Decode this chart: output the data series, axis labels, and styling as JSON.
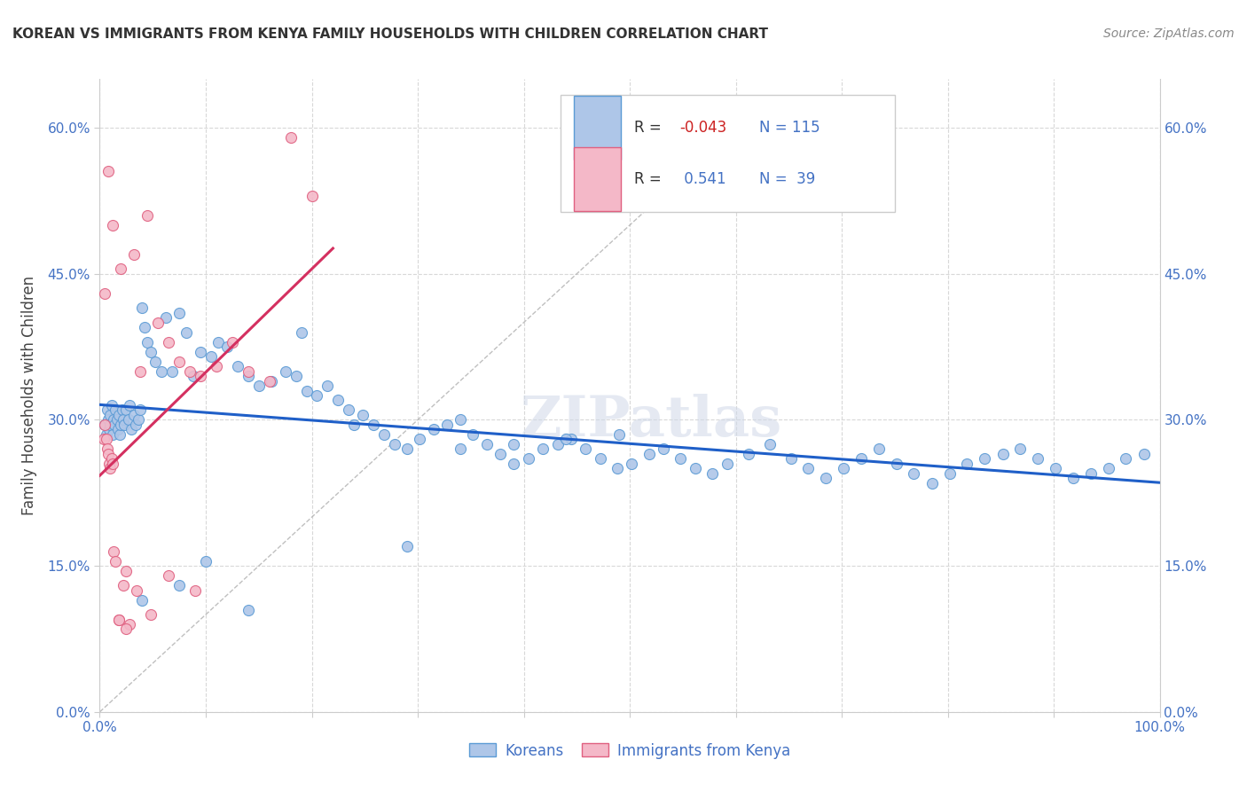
{
  "title": "KOREAN VS IMMIGRANTS FROM KENYA FAMILY HOUSEHOLDS WITH CHILDREN CORRELATION CHART",
  "source": "Source: ZipAtlas.com",
  "ylabel": "Family Households with Children",
  "xlim": [
    0.0,
    1.0
  ],
  "ylim": [
    0.0,
    0.65
  ],
  "yticks": [
    0.0,
    0.15,
    0.3,
    0.45,
    0.6
  ],
  "xticks": [
    0.0,
    0.1,
    0.2,
    0.3,
    0.4,
    0.5,
    0.6,
    0.7,
    0.8,
    0.9,
    1.0
  ],
  "korean_fill": "#aec6e8",
  "korean_edge": "#5b9bd5",
  "kenya_fill": "#f4b8c8",
  "kenya_edge": "#e06080",
  "trend_korean_color": "#1f5fc8",
  "trend_kenya_color": "#d43060",
  "diagonal_color": "#b0b0b0",
  "R_korean": -0.043,
  "N_korean": 115,
  "R_kenya": 0.541,
  "N_kenya": 39,
  "legend_label_korean": "Koreans",
  "legend_label_kenya": "Immigrants from Kenya",
  "watermark": "ZIPatlas",
  "background_color": "#ffffff",
  "grid_color": "#d8d8d8",
  "tick_color": "#4472c4",
  "title_color": "#333333",
  "source_color": "#888888",
  "korean_x": [
    0.005,
    0.006,
    0.007,
    0.008,
    0.009,
    0.01,
    0.01,
    0.011,
    0.012,
    0.013,
    0.014,
    0.015,
    0.016,
    0.017,
    0.018,
    0.019,
    0.02,
    0.021,
    0.022,
    0.023,
    0.025,
    0.027,
    0.028,
    0.03,
    0.032,
    0.034,
    0.036,
    0.038,
    0.04,
    0.042,
    0.045,
    0.048,
    0.052,
    0.058,
    0.062,
    0.068,
    0.075,
    0.082,
    0.088,
    0.095,
    0.105,
    0.112,
    0.12,
    0.13,
    0.14,
    0.15,
    0.162,
    0.175,
    0.185,
    0.195,
    0.205,
    0.215,
    0.225,
    0.235,
    0.248,
    0.258,
    0.268,
    0.278,
    0.29,
    0.302,
    0.315,
    0.328,
    0.34,
    0.352,
    0.365,
    0.378,
    0.39,
    0.405,
    0.418,
    0.432,
    0.445,
    0.458,
    0.472,
    0.488,
    0.502,
    0.518,
    0.532,
    0.548,
    0.562,
    0.578,
    0.592,
    0.612,
    0.632,
    0.652,
    0.668,
    0.685,
    0.702,
    0.718,
    0.735,
    0.752,
    0.768,
    0.785,
    0.802,
    0.818,
    0.835,
    0.852,
    0.868,
    0.885,
    0.902,
    0.918,
    0.935,
    0.952,
    0.968,
    0.985,
    0.04,
    0.075,
    0.1,
    0.14,
    0.19,
    0.24,
    0.29,
    0.34,
    0.39,
    0.44,
    0.49
  ],
  "korean_y": [
    0.295,
    0.285,
    0.31,
    0.3,
    0.29,
    0.305,
    0.295,
    0.315,
    0.285,
    0.3,
    0.295,
    0.31,
    0.3,
    0.29,
    0.305,
    0.285,
    0.295,
    0.31,
    0.3,
    0.295,
    0.31,
    0.3,
    0.315,
    0.29,
    0.305,
    0.295,
    0.3,
    0.31,
    0.415,
    0.395,
    0.38,
    0.37,
    0.36,
    0.35,
    0.405,
    0.35,
    0.41,
    0.39,
    0.345,
    0.37,
    0.365,
    0.38,
    0.375,
    0.355,
    0.345,
    0.335,
    0.34,
    0.35,
    0.345,
    0.33,
    0.325,
    0.335,
    0.32,
    0.31,
    0.305,
    0.295,
    0.285,
    0.275,
    0.27,
    0.28,
    0.29,
    0.295,
    0.3,
    0.285,
    0.275,
    0.265,
    0.255,
    0.26,
    0.27,
    0.275,
    0.28,
    0.27,
    0.26,
    0.25,
    0.255,
    0.265,
    0.27,
    0.26,
    0.25,
    0.245,
    0.255,
    0.265,
    0.275,
    0.26,
    0.25,
    0.24,
    0.25,
    0.26,
    0.27,
    0.255,
    0.245,
    0.235,
    0.245,
    0.255,
    0.26,
    0.265,
    0.27,
    0.26,
    0.25,
    0.24,
    0.245,
    0.25,
    0.26,
    0.265,
    0.115,
    0.13,
    0.155,
    0.105,
    0.39,
    0.295,
    0.17,
    0.27,
    0.275,
    0.28,
    0.285
  ],
  "kenya_x": [
    0.004,
    0.005,
    0.006,
    0.007,
    0.008,
    0.009,
    0.01,
    0.011,
    0.012,
    0.013,
    0.015,
    0.018,
    0.02,
    0.022,
    0.025,
    0.028,
    0.032,
    0.038,
    0.045,
    0.055,
    0.065,
    0.075,
    0.085,
    0.095,
    0.11,
    0.125,
    0.14,
    0.16,
    0.18,
    0.2,
    0.005,
    0.008,
    0.012,
    0.018,
    0.025,
    0.035,
    0.048,
    0.065,
    0.09
  ],
  "kenya_y": [
    0.28,
    0.295,
    0.28,
    0.27,
    0.265,
    0.255,
    0.25,
    0.26,
    0.255,
    0.165,
    0.155,
    0.095,
    0.455,
    0.13,
    0.145,
    0.09,
    0.47,
    0.35,
    0.51,
    0.4,
    0.38,
    0.36,
    0.35,
    0.345,
    0.355,
    0.38,
    0.35,
    0.34,
    0.59,
    0.53,
    0.43,
    0.555,
    0.5,
    0.095,
    0.085,
    0.125,
    0.1,
    0.14,
    0.125
  ]
}
